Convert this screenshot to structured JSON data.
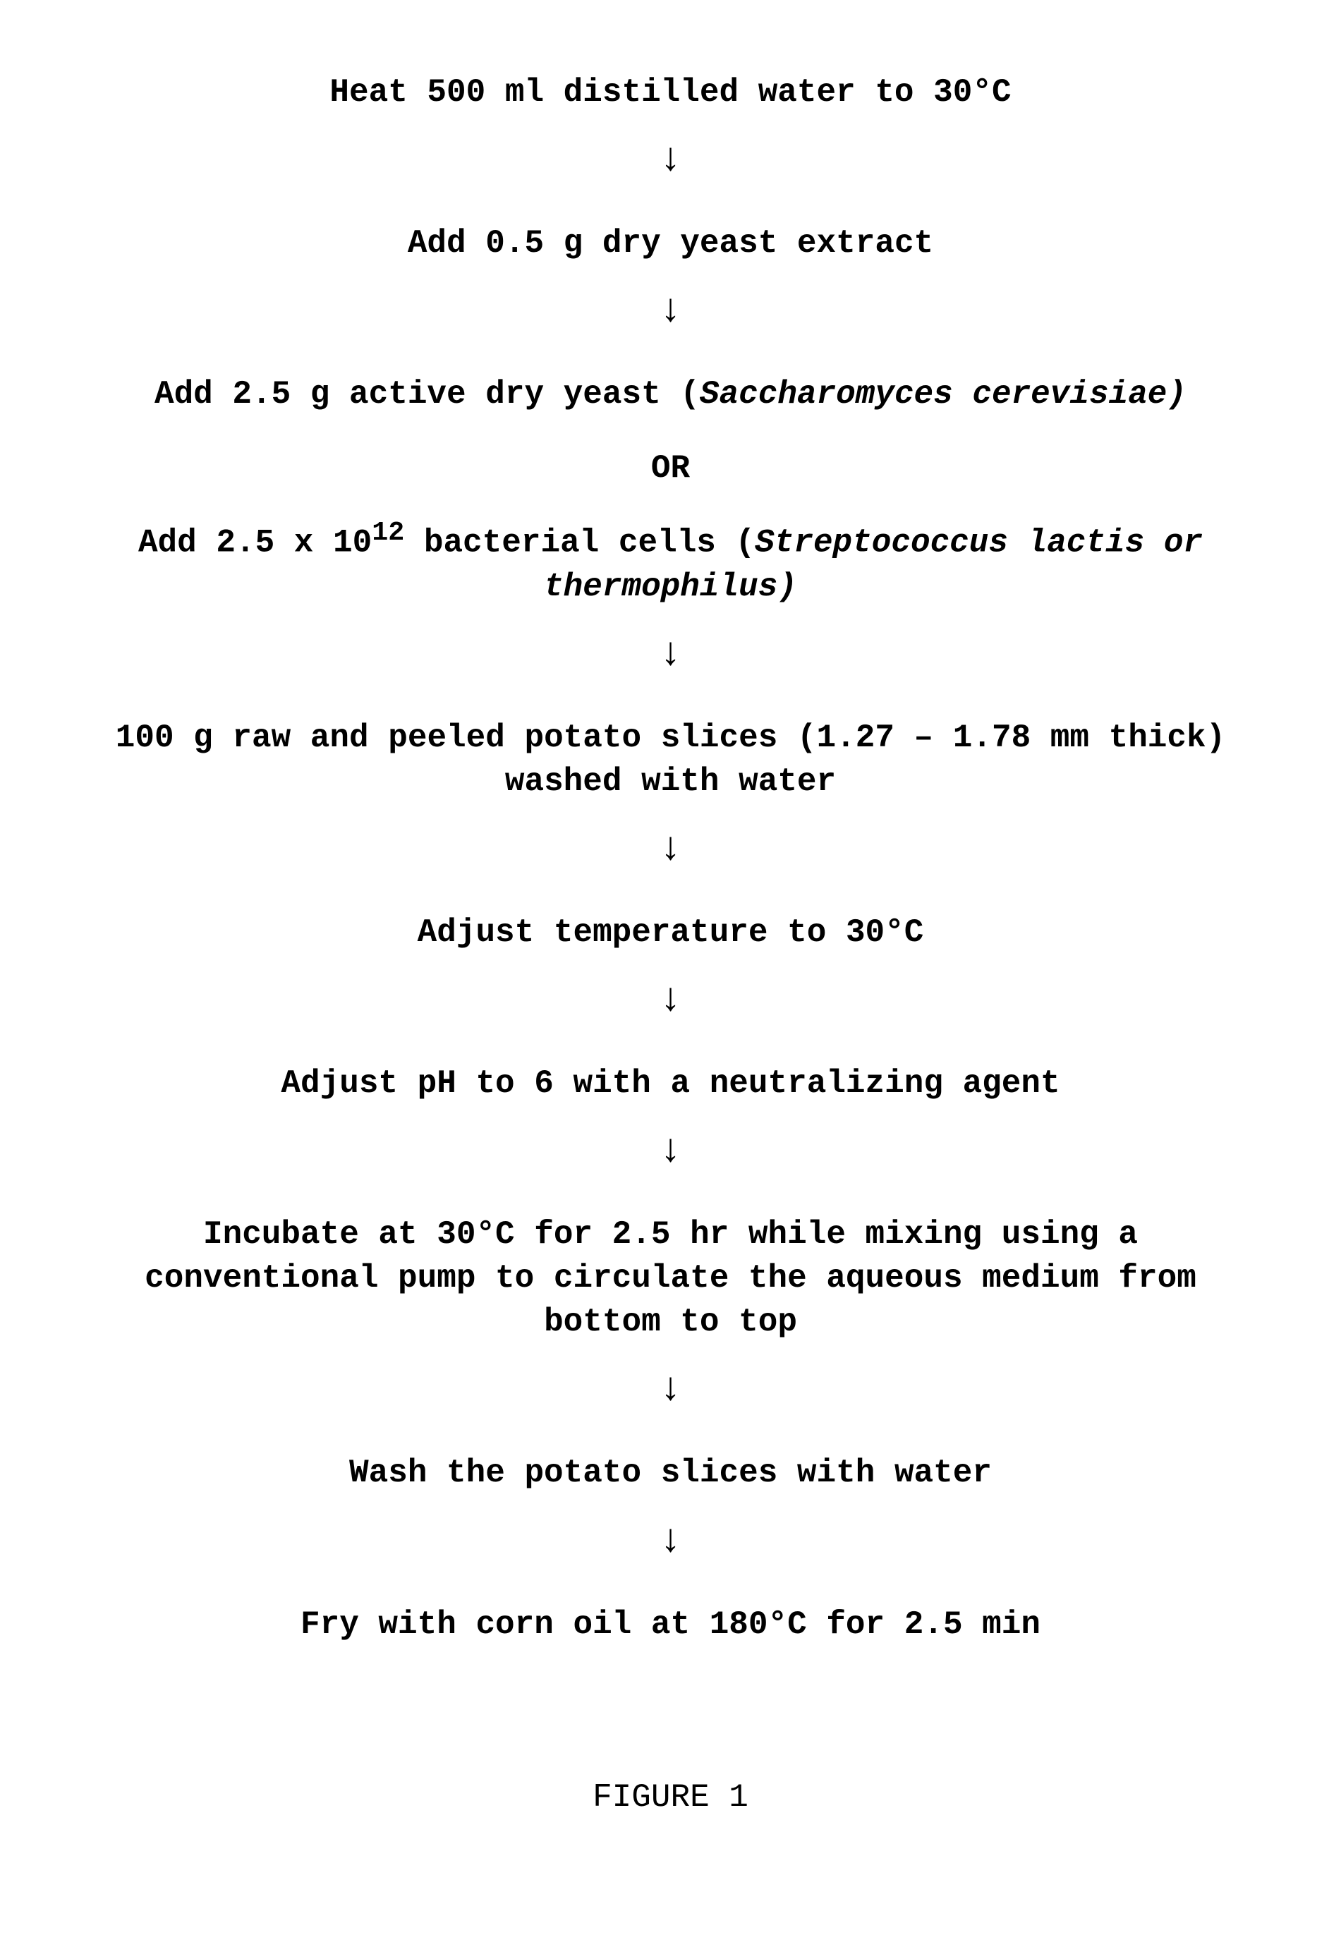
{
  "flow": {
    "font_family": "Courier New",
    "font_size_pt": 46,
    "font_weight": "bold",
    "text_color": "#000000",
    "background_color": "#ffffff",
    "arrow_glyph": "↓",
    "steps": {
      "s1": "Heat 500 ml distilled water to 30°C",
      "s2": "Add 0.5 g dry yeast extract",
      "s3_prefix": "Add 2.5 g active dry yeast (",
      "s3_italic": "Saccharomyces cerevisiae)",
      "or_label": "OR",
      "s3b_prefix": "Add 2.5 x 10",
      "s3b_exp": "12",
      "s3b_mid": " bacterial cells (",
      "s3b_italic_l1": "Streptococcus lactis or",
      "s3b_italic_l2": "thermophilus)",
      "s4_l1": "100 g raw and peeled potato slices (1.27 – 1.78 mm thick)",
      "s4_l2": "washed with water",
      "s5": "Adjust temperature to 30°C",
      "s6": "Adjust pH to 6 with a neutralizing agent",
      "s7_l1": "Incubate at 30°C for 2.5 hr while mixing using a",
      "s7_l2": "conventional pump to circulate the aqueous medium from",
      "s7_l3": "bottom to top",
      "s8": "Wash the potato slices with water",
      "s9": "Fry with corn oil at 180°C for 2.5 min"
    },
    "figure_label": "FIGURE 1"
  }
}
